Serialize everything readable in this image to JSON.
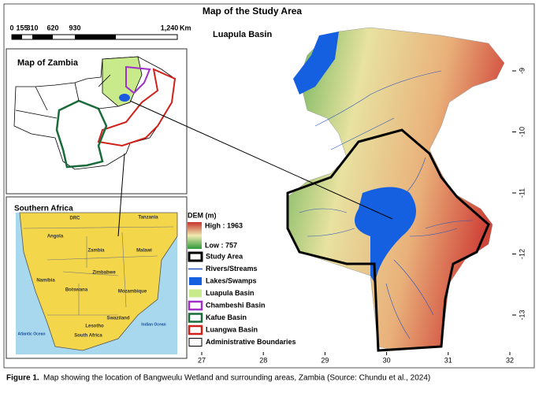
{
  "title": "Map of the Study Area",
  "scale_bar": {
    "labels": [
      "0",
      "155",
      "310",
      "620",
      "930",
      "1,240"
    ],
    "unit": "Km"
  },
  "zambia_inset": {
    "title": "Map of Zambia"
  },
  "southern_africa_inset": {
    "title": "Southern Africa",
    "labels": [
      "DRC",
      "Tanzania",
      "Angola",
      "Zambia",
      "Malawi",
      "Namibia",
      "Zimbabwe",
      "Botswana",
      "Mozambique",
      "Swaziland",
      "Lesotho",
      "South Africa",
      "Atlantic Ocean",
      "Indian Ocean"
    ]
  },
  "main_map": {
    "label": "Luapula Basin",
    "x_ticks": [
      "27",
      "28",
      "29",
      "30",
      "31",
      "32"
    ],
    "y_ticks": [
      "-9",
      "-10",
      "-11",
      "-12",
      "-13"
    ]
  },
  "legend": {
    "title": "DEM (m)",
    "high": "High : 1963",
    "low": "Low : 757",
    "items": [
      "Study Area",
      "Rivers/Streams",
      "Lakes/Swamps",
      "Luapula Basin",
      "Chambeshi Basin",
      "Kafue Basin",
      "Luangwa Basin",
      "Administrative Boundaries"
    ]
  },
  "caption": {
    "label": "Figure 1.",
    "text": "Map showing the location of Bangweulu Wetland and surrounding areas, Zambia (Source: Chundu et al., 2024)"
  }
}
